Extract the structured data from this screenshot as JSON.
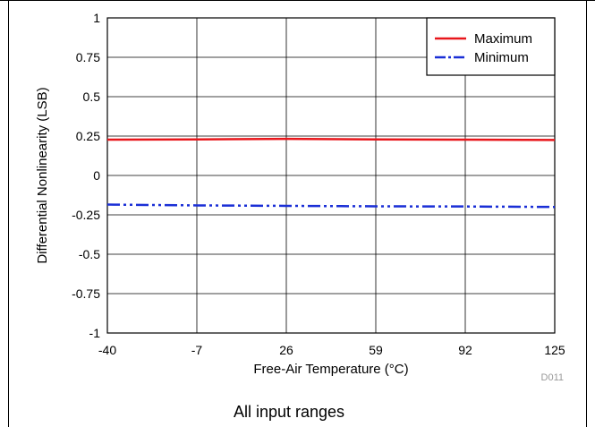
{
  "chart_data": {
    "type": "line",
    "xlabel": "Free-Air Temperature (°C)",
    "ylabel": "Differential Nonlinearity (LSB)",
    "x_ticks": [
      "-40",
      "-7",
      "26",
      "59",
      "92",
      "125"
    ],
    "y_ticks": [
      "1",
      "0.75",
      "0.5",
      "0.25",
      "0",
      "-0.25",
      "-0.5",
      "-0.75",
      "-1"
    ],
    "xlim": [
      -40,
      125
    ],
    "ylim": [
      -1,
      1
    ],
    "grid": true,
    "legend_position": "top-right",
    "series": [
      {
        "name": "Maximum",
        "color": "#e8161b",
        "line_style": "solid",
        "x": [
          -40,
          -7,
          26,
          59,
          92,
          125
        ],
        "y": [
          0.227,
          0.229,
          0.232,
          0.229,
          0.227,
          0.225
        ]
      },
      {
        "name": "Minimum",
        "color": "#1a2fd6",
        "line_style": "dash-dot-dot",
        "x": [
          -40,
          -7,
          26,
          59,
          92,
          125
        ],
        "y": [
          -0.185,
          -0.19,
          -0.193,
          -0.196,
          -0.197,
          -0.2
        ]
      }
    ],
    "figure_code": "D011",
    "caption": "All input ranges"
  }
}
